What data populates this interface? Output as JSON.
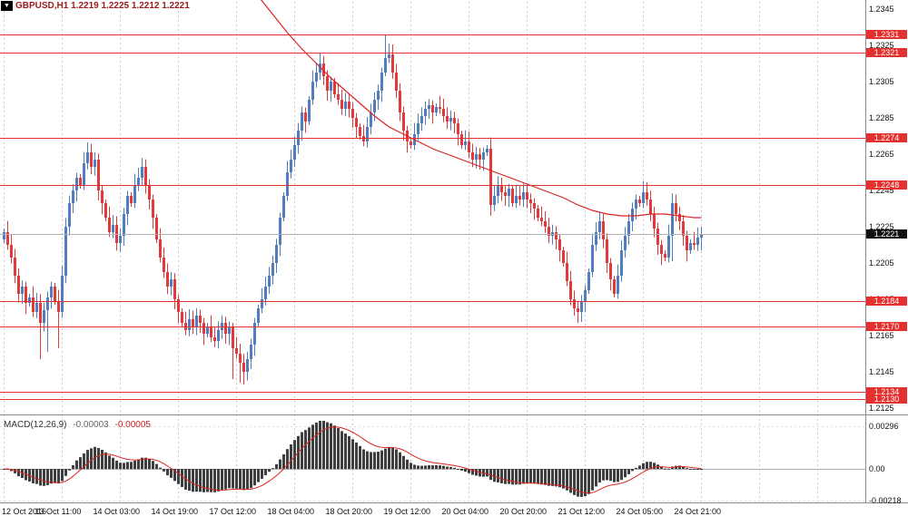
{
  "header": {
    "title": "GBPUSD,H1 1.2219 1.2225 1.2212 1.2221"
  },
  "icons": {
    "chart_menu": "▼"
  },
  "colors": {
    "bull": "#4f7dc2",
    "bear": "#e03a3a",
    "sr_line": "#e53030",
    "badge_red_bg": "#e53030",
    "badge_black_bg": "#111111",
    "ma_line": "#dd2222",
    "macd_hist": "#3f3f3f",
    "macd_signal": "#dd2222",
    "grid": "#c8c8c8",
    "current_price_line": "#b0b0b0",
    "separator": "#8a8a8a",
    "title_text": "#9b1b1b"
  },
  "chart_data": {
    "type": "candlestick",
    "symbol": "GBPUSD",
    "timeframe": "H1",
    "current_bar": {
      "open": "1.2219",
      "high": "1.2225",
      "low": "1.2212",
      "close": "1.2221"
    },
    "price_axis_ticks": [
      "1.2345",
      "1.2325",
      "1.2305",
      "1.2285",
      "1.2265",
      "1.2245",
      "1.2225",
      "1.2205",
      "1.2185",
      "1.2165",
      "1.2145",
      "1.2125"
    ],
    "time_labels": [
      {
        "index": 0,
        "label": "12 Oct 2016"
      },
      {
        "index": 16,
        "label": "13 Oct 11:00"
      },
      {
        "index": 32,
        "label": "14 Oct 03:00"
      },
      {
        "index": 48,
        "label": "14 Oct 19:00"
      },
      {
        "index": 64,
        "label": "17 Oct 12:00"
      },
      {
        "index": 80,
        "label": "18 Oct 04:00"
      },
      {
        "index": 96,
        "label": "18 Oct 20:00"
      },
      {
        "index": 112,
        "label": "19 Oct 12:00"
      },
      {
        "index": 128,
        "label": "20 Oct 04:00"
      },
      {
        "index": 144,
        "label": "20 Oct 20:00"
      },
      {
        "index": 160,
        "label": "21 Oct 12:00"
      },
      {
        "index": 176,
        "label": "24 Oct 05:00"
      },
      {
        "index": 192,
        "label": "24 Oct 21:00"
      }
    ],
    "sr_levels": [
      {
        "price": 1.2331,
        "label": "1.2331"
      },
      {
        "price": 1.2321,
        "label": "1.2321"
      },
      {
        "price": 1.2274,
        "label": "1.2274"
      },
      {
        "price": 1.2248,
        "label": "1.2248"
      },
      {
        "price": 1.2184,
        "label": "1.2184"
      },
      {
        "price": 1.217,
        "label": "1.2170"
      },
      {
        "price": 1.2134,
        "label": "1.2134"
      },
      {
        "price": 1.213,
        "label": "1.2130"
      }
    ],
    "current_price": {
      "price": 1.2221,
      "label": "1.2221"
    },
    "open_first": 1.2218,
    "closes": [
      1.2222,
      1.2215,
      1.2208,
      1.2198,
      1.2188,
      1.2192,
      1.2183,
      1.2186,
      1.2178,
      1.2183,
      1.2172,
      1.2179,
      1.2186,
      1.2192,
      1.2184,
      1.2178,
      1.2198,
      1.2225,
      1.2238,
      1.2245,
      1.2252,
      1.2248,
      1.226,
      1.2266,
      1.2258,
      1.2262,
      1.2245,
      1.2238,
      1.223,
      1.2222,
      1.2226,
      1.2216,
      1.222,
      1.2232,
      1.2242,
      1.2238,
      1.2248,
      1.2252,
      1.2258,
      1.2248,
      1.224,
      1.223,
      1.2218,
      1.2208,
      1.22,
      1.2192,
      1.2196,
      1.2185,
      1.2178,
      1.2172,
      1.2168,
      1.2174,
      1.217,
      1.2176,
      1.2172,
      1.2166,
      1.217,
      1.2164,
      1.2162,
      1.2168,
      1.2172,
      1.2166,
      1.217,
      1.2158,
      1.2155,
      1.215,
      1.2145,
      1.2152,
      1.216,
      1.2172,
      1.218,
      1.2185,
      1.2192,
      1.2198,
      1.2205,
      1.2215,
      1.223,
      1.2242,
      1.2255,
      1.2262,
      1.227,
      1.2278,
      1.2288,
      1.2283,
      1.2295,
      1.2305,
      1.231,
      1.2315,
      1.2308,
      1.23,
      1.2305,
      1.2298,
      1.2295,
      1.229,
      1.2294,
      1.229,
      1.2285,
      1.228,
      1.2275,
      1.2272,
      1.228,
      1.2288,
      1.2295,
      1.23,
      1.231,
      1.2318,
      1.232,
      1.231,
      1.23,
      1.2288,
      1.2278,
      1.2272,
      1.227,
      1.2276,
      1.2282,
      1.2286,
      1.229,
      1.2292,
      1.2288,
      1.2291,
      1.229,
      1.2286,
      1.2283,
      1.2285,
      1.2282,
      1.2276,
      1.227,
      1.2272,
      1.2266,
      1.2262,
      1.2265,
      1.2262,
      1.2266,
      1.2268,
      1.2237,
      1.2242,
      1.2248,
      1.2244,
      1.2242,
      1.2246,
      1.2238,
      1.2242,
      1.224,
      1.2244,
      1.224,
      1.2238,
      1.2235,
      1.223,
      1.2228,
      1.2225,
      1.222,
      1.2222,
      1.2218,
      1.2212,
      1.2205,
      1.2195,
      1.2185,
      1.218,
      1.2178,
      1.2184,
      1.219,
      1.22,
      1.2215,
      1.2222,
      1.2228,
      1.2218,
      1.2205,
      1.2196,
      1.2188,
      1.2198,
      1.2212,
      1.222,
      1.2228,
      1.2235,
      1.224,
      1.2238,
      1.2244,
      1.224,
      1.2232,
      1.2224,
      1.2215,
      1.221,
      1.2208,
      1.222,
      1.2238,
      1.2232,
      1.2228,
      1.222,
      1.2212,
      1.2216,
      1.2215,
      1.2219,
      1.2221
    ],
    "wick_overrides": {
      "10": {
        "low": 1.2152
      },
      "12": {
        "low": 1.2156
      },
      "15": {
        "low": 1.2158
      },
      "63": {
        "low": 1.2141
      },
      "65": {
        "low": 1.2139
      },
      "66": {
        "low": 1.2138
      },
      "87": {
        "high": 1.2321
      },
      "105": {
        "high": 1.2331
      },
      "106": {
        "high": 1.2326
      },
      "134": {
        "low": 1.2231
      },
      "158": {
        "low": 1.2172
      },
      "184": {
        "low": 1.2206
      },
      "192": {
        "high": 1.2225,
        "low": 1.2212
      }
    },
    "ma_line": [
      [
        70,
        1.2352
      ],
      [
        74,
        1.2342
      ],
      [
        78,
        1.2332
      ],
      [
        82,
        1.2323
      ],
      [
        86,
        1.2315
      ],
      [
        90,
        1.2307
      ],
      [
        94,
        1.23
      ],
      [
        98,
        1.2293
      ],
      [
        102,
        1.2286
      ],
      [
        106,
        1.228
      ],
      [
        110,
        1.2276
      ],
      [
        114,
        1.2272
      ],
      [
        118,
        1.2268
      ],
      [
        122,
        1.2265
      ],
      [
        126,
        1.2262
      ],
      [
        130,
        1.2259
      ],
      [
        134,
        1.2256
      ],
      [
        138,
        1.2253
      ],
      [
        142,
        1.225
      ],
      [
        146,
        1.2247
      ],
      [
        150,
        1.2244
      ],
      [
        154,
        1.2241
      ],
      [
        158,
        1.2237
      ],
      [
        162,
        1.2234
      ],
      [
        166,
        1.2232
      ],
      [
        170,
        1.2231
      ],
      [
        174,
        1.2231
      ],
      [
        178,
        1.2232
      ],
      [
        182,
        1.2232
      ],
      [
        186,
        1.2231
      ],
      [
        190,
        1.223
      ],
      [
        192,
        1.223
      ]
    ],
    "macd": {
      "label": "MACD(12,26,9)",
      "value_main": "-0.00003",
      "value_signal": "-0.00005",
      "fast": 12,
      "slow": 26,
      "signal": 9,
      "ticks": [
        {
          "value": 0.00296,
          "label": "0.00296"
        },
        {
          "value": 0,
          "label": "0.00"
        },
        {
          "value": -0.00218,
          "label": "-0.00218"
        }
      ]
    }
  }
}
